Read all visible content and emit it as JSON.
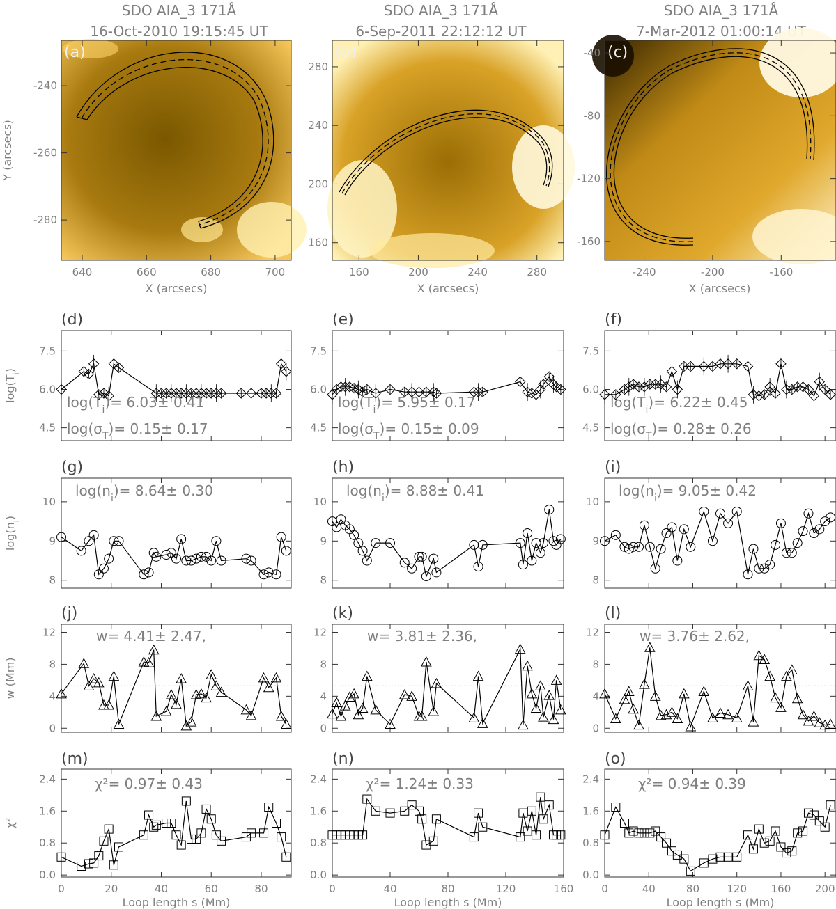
{
  "images": [
    {
      "letter": "(a)",
      "title1": "SDO AIA_3 171Å",
      "title2": "16-Oct-2010 19:15:45 UT",
      "xlabel": "X (arcsecs)",
      "ylabel": "Y (arcsecs)",
      "xticks": [
        "640",
        "660",
        "680",
        "700"
      ],
      "yticks": [
        "-240",
        "-260",
        "-280"
      ]
    },
    {
      "letter": "(b)",
      "title1": "SDO AIA_3 171Å",
      "title2": "6-Sep-2011 22:12:12 UT",
      "xlabel": "X (arcsecs)",
      "ylabel": "",
      "xticks": [
        "160",
        "200",
        "240",
        "280"
      ],
      "yticks": [
        "280",
        "240",
        "200",
        "160"
      ]
    },
    {
      "letter": "(c)",
      "title1": "SDO AIA_3 171Å",
      "title2": "7-Mar-2012 01:00:14 UT",
      "xlabel": "X (arcsecs)",
      "ylabel": "",
      "xticks": [
        "-240",
        "-200",
        "-160"
      ],
      "yticks": [
        "-40",
        "-80",
        "-120",
        "-160"
      ]
    }
  ],
  "rows": [
    {
      "key": "T",
      "ylabel": "log(T_i)",
      "letters": [
        "(d)",
        "(e)",
        "(f)"
      ],
      "annotations": [
        [
          "log(T_i)= 6.03± 0.41",
          "log(σ_T)= 0.15± 0.17"
        ],
        [
          "log(T_i)= 5.95± 0.17",
          "log(σ_T)= 0.15± 0.09"
        ],
        [
          "log(T_i)= 6.22± 0.45",
          "log(σ_T)= 0.28± 0.26"
        ]
      ]
    },
    {
      "key": "n",
      "ylabel": "log(n_i)",
      "letters": [
        "(g)",
        "(h)",
        "(i)"
      ],
      "annotations": [
        [
          "log(n_i)= 8.64± 0.30"
        ],
        [
          "log(n_i)= 8.88± 0.41"
        ],
        [
          "log(n_i)= 9.05± 0.42"
        ]
      ]
    },
    {
      "key": "w",
      "ylabel": "w (Mm)",
      "letters": [
        "(j)",
        "(k)",
        "(l)"
      ],
      "annotations": [
        [
          "w= 4.41± 2.47,"
        ],
        [
          "w= 3.81± 2.36,"
        ],
        [
          "w= 3.76± 2.62,"
        ]
      ]
    },
    {
      "key": "chi",
      "ylabel": "χ²",
      "letters": [
        "(m)",
        "(n)",
        "(o)"
      ],
      "annotations": [
        [
          "χ²= 0.97± 0.43"
        ],
        [
          "χ²= 1.24± 0.33"
        ],
        [
          "χ²= 0.94± 0.39"
        ]
      ]
    }
  ],
  "xlabel_bottom": "Loop length s (Mm)",
  "chart_data": [
    {
      "type": "line",
      "panel": "d",
      "ylabel": "log(T_i)",
      "xlim": [
        0,
        92
      ],
      "ylim": [
        4.0,
        8.3
      ],
      "yticks": [
        "7.5",
        "6.0",
        "4.5"
      ],
      "xticks": [],
      "x": [
        0,
        9,
        11,
        13,
        15,
        17,
        19,
        21,
        23,
        38,
        40,
        42,
        44,
        46,
        48,
        50,
        52,
        54,
        56,
        58,
        60,
        62,
        64,
        72,
        76,
        80,
        82,
        84,
        86,
        88,
        90
      ],
      "y": [
        6.0,
        6.7,
        6.6,
        7.0,
        5.8,
        5.85,
        5.75,
        7.0,
        6.85,
        5.85,
        5.85,
        5.85,
        5.85,
        5.85,
        5.85,
        5.85,
        5.85,
        5.85,
        5.85,
        5.85,
        5.85,
        5.85,
        5.85,
        5.85,
        5.85,
        5.85,
        5.85,
        5.85,
        5.85,
        7.0,
        6.7
      ]
    },
    {
      "type": "line",
      "panel": "e",
      "ylabel": "log(T_i)",
      "xlim": [
        0,
        160
      ],
      "ylim": [
        4.0,
        8.3
      ],
      "yticks": [
        "7.5",
        "6.0",
        "4.5"
      ],
      "xticks": [],
      "x": [
        0,
        3,
        6,
        9,
        12,
        15,
        18,
        21,
        24,
        30,
        40,
        50,
        55,
        60,
        65,
        70,
        72,
        98,
        101,
        104,
        130,
        135,
        138,
        141,
        144,
        146,
        150,
        153,
        155,
        158
      ],
      "y": [
        5.8,
        6.0,
        6.1,
        6.1,
        6.1,
        6.05,
        6.0,
        5.9,
        6.0,
        5.85,
        6.0,
        5.9,
        5.9,
        5.9,
        5.9,
        5.9,
        5.85,
        5.9,
        5.9,
        5.9,
        6.3,
        5.9,
        5.85,
        5.8,
        6.0,
        6.2,
        6.5,
        6.2,
        6.1,
        6.0
      ]
    },
    {
      "type": "line",
      "panel": "f",
      "ylabel": "log(T_i)",
      "xlim": [
        0,
        210
      ],
      "ylim": [
        4.0,
        8.3
      ],
      "yticks": [
        "7.5",
        "6.0",
        "4.5"
      ],
      "xticks": [],
      "x": [
        0,
        10,
        18,
        22,
        26,
        31,
        36,
        41,
        46,
        51,
        56,
        61,
        66,
        72,
        78,
        90,
        98,
        105,
        112,
        120,
        130,
        135,
        140,
        145,
        150,
        155,
        160,
        165,
        170,
        175,
        180,
        185,
        190,
        195,
        200,
        205
      ],
      "y": [
        5.8,
        5.8,
        6.0,
        6.1,
        6.2,
        6.1,
        6.1,
        6.2,
        6.2,
        6.2,
        6.1,
        6.7,
        6.0,
        6.9,
        6.9,
        6.9,
        6.9,
        7.0,
        7.0,
        7.0,
        6.9,
        5.8,
        5.75,
        5.8,
        6.1,
        5.85,
        7.0,
        6.0,
        6.0,
        6.1,
        6.1,
        6.0,
        5.75,
        6.3,
        6.0,
        5.8
      ]
    },
    {
      "type": "line",
      "panel": "g",
      "ylabel": "log(n_i)",
      "xlim": [
        0,
        92
      ],
      "ylim": [
        7.8,
        10.6
      ],
      "yticks": [
        "10",
        "9",
        "8"
      ],
      "xticks": [],
      "x": [
        0,
        8,
        11,
        13,
        15,
        17,
        19,
        21,
        23,
        33,
        35,
        37,
        38,
        42,
        44,
        46,
        48,
        50,
        52,
        54,
        56,
        58,
        60,
        62,
        64,
        74,
        76,
        81,
        83,
        86,
        88,
        90
      ],
      "y": [
        9.1,
        8.75,
        9.0,
        9.15,
        8.15,
        8.3,
        8.55,
        9.0,
        9.0,
        8.15,
        8.2,
        8.7,
        8.6,
        8.65,
        8.7,
        8.55,
        9.05,
        8.5,
        8.5,
        8.55,
        8.6,
        8.6,
        8.5,
        9.0,
        8.5,
        8.55,
        8.5,
        8.15,
        8.2,
        8.15,
        9.1,
        8.75
      ]
    },
    {
      "type": "line",
      "panel": "h",
      "ylabel": "log(n_i)",
      "xlim": [
        0,
        160
      ],
      "ylim": [
        7.8,
        10.6
      ],
      "yticks": [
        "10",
        "9",
        "8"
      ],
      "xticks": [],
      "x": [
        0,
        3,
        6,
        9,
        12,
        15,
        18,
        21,
        24,
        30,
        40,
        50,
        55,
        60,
        62,
        65,
        70,
        72,
        98,
        101,
        104,
        130,
        132,
        135,
        138,
        141,
        144,
        146,
        150,
        153,
        155,
        158
      ],
      "y": [
        9.5,
        9.35,
        9.55,
        9.4,
        9.3,
        9.15,
        8.95,
        8.75,
        8.5,
        8.95,
        8.95,
        8.45,
        8.3,
        8.6,
        8.6,
        8.1,
        8.55,
        8.2,
        8.9,
        8.35,
        8.9,
        8.95,
        8.4,
        9.2,
        8.5,
        8.95,
        8.7,
        8.95,
        9.8,
        9.0,
        8.9,
        9.05
      ]
    },
    {
      "type": "line",
      "panel": "i",
      "ylabel": "log(n_i)",
      "xlim": [
        0,
        210
      ],
      "ylim": [
        7.8,
        10.6
      ],
      "yticks": [
        "10",
        "9",
        "8"
      ],
      "xticks": [],
      "x": [
        0,
        10,
        18,
        22,
        26,
        31,
        36,
        41,
        46,
        51,
        56,
        61,
        66,
        72,
        78,
        90,
        98,
        105,
        112,
        120,
        130,
        135,
        140,
        145,
        150,
        155,
        160,
        165,
        170,
        175,
        180,
        185,
        190,
        195,
        200,
        205
      ],
      "y": [
        9.0,
        9.15,
        8.85,
        8.8,
        8.85,
        8.85,
        9.4,
        8.85,
        8.3,
        8.8,
        9.2,
        9.35,
        8.5,
        9.3,
        8.85,
        9.75,
        9.0,
        9.7,
        9.45,
        9.75,
        8.15,
        8.8,
        8.3,
        8.3,
        8.4,
        8.9,
        9.45,
        8.7,
        8.7,
        8.95,
        9.25,
        9.7,
        9.2,
        9.3,
        9.5,
        9.6
      ]
    },
    {
      "type": "line",
      "panel": "j",
      "ylabel": "w (Mm)",
      "xlim": [
        0,
        92
      ],
      "ylim": [
        -0.5,
        13
      ],
      "yticks": [
        "12",
        "8",
        "4",
        "0"
      ],
      "xticks": [],
      "dotted_y": 5.3,
      "x": [
        0,
        9,
        11,
        13,
        15,
        17,
        19,
        21,
        23,
        33,
        35,
        37,
        38,
        42,
        44,
        46,
        48,
        50,
        52,
        54,
        56,
        58,
        60,
        62,
        64,
        74,
        76,
        81,
        83,
        86,
        88,
        90
      ],
      "y": [
        4.3,
        8.1,
        5.3,
        6.2,
        5.7,
        2.9,
        2.9,
        6.5,
        0.5,
        8.3,
        8.2,
        9.8,
        1.5,
        2.1,
        4.2,
        3.0,
        6.2,
        0.3,
        0.8,
        4.2,
        4.3,
        3.8,
        6.7,
        5.3,
        4.5,
        2.3,
        1.6,
        6.3,
        5.1,
        6.3,
        1.5,
        0.5
      ]
    },
    {
      "type": "line",
      "panel": "k",
      "ylabel": "w (Mm)",
      "xlim": [
        0,
        160
      ],
      "ylim": [
        -0.5,
        13
      ],
      "yticks": [
        "12",
        "8",
        "4",
        "0"
      ],
      "xticks": [],
      "dotted_y": 5.3,
      "x": [
        0,
        3,
        6,
        9,
        12,
        15,
        18,
        21,
        24,
        30,
        40,
        50,
        55,
        60,
        62,
        65,
        70,
        72,
        98,
        101,
        104,
        130,
        132,
        135,
        138,
        141,
        144,
        146,
        150,
        153,
        155,
        158
      ],
      "y": [
        1.8,
        3.2,
        1.5,
        2.8,
        3.9,
        4.3,
        1.7,
        2.5,
        6.5,
        2.3,
        0.5,
        4.2,
        4.0,
        1.5,
        1.5,
        8.3,
        2.1,
        5.6,
        1.3,
        6.5,
        0.6,
        9.9,
        0.4,
        7.8,
        4.3,
        2.5,
        5.3,
        1.4,
        4.1,
        1.1,
        6.0,
        2.3
      ]
    },
    {
      "type": "line",
      "panel": "l",
      "ylabel": "w (Mm)",
      "xlim": [
        0,
        210
      ],
      "ylim": [
        -0.5,
        13
      ],
      "yticks": [
        "12",
        "8",
        "4",
        "0"
      ],
      "xticks": [],
      "dotted_y": 5.3,
      "x": [
        0,
        10,
        18,
        22,
        26,
        31,
        36,
        41,
        46,
        51,
        56,
        61,
        66,
        72,
        78,
        90,
        98,
        105,
        112,
        120,
        130,
        135,
        140,
        145,
        150,
        155,
        160,
        165,
        170,
        175,
        180,
        185,
        190,
        195,
        200,
        205
      ],
      "y": [
        4.3,
        1.2,
        3.6,
        4.6,
        2.4,
        0.4,
        5.5,
        10.1,
        4.0,
        1.6,
        1.7,
        2.0,
        1.2,
        4.3,
        0.2,
        4.6,
        1.3,
        1.9,
        1.7,
        1.3,
        5.3,
        0.8,
        9.1,
        8.6,
        6.5,
        3.8,
        2.6,
        6.5,
        7.3,
        3.7,
        1.7,
        0.9,
        1.5,
        0.7,
        0.4,
        0.5
      ]
    },
    {
      "type": "line",
      "panel": "m",
      "ylabel": "χ²",
      "xlim": [
        0,
        92
      ],
      "ylim": [
        -0.05,
        2.65
      ],
      "yticks": [
        "2.4",
        "1.6",
        "0.8",
        "0.0"
      ],
      "xticks": [
        "0",
        "20",
        "40",
        "60",
        "80"
      ],
      "x": [
        0,
        8,
        11,
        13,
        15,
        17,
        19,
        21,
        23,
        33,
        35,
        37,
        38,
        42,
        44,
        46,
        48,
        50,
        52,
        54,
        56,
        58,
        60,
        62,
        64,
        74,
        76,
        81,
        83,
        86,
        88,
        90
      ],
      "y": [
        0.45,
        0.22,
        0.28,
        0.3,
        0.48,
        0.85,
        1.15,
        0.25,
        0.7,
        1.0,
        1.5,
        1.2,
        1.25,
        1.3,
        1.3,
        1.0,
        0.75,
        1.85,
        0.9,
        0.9,
        1.05,
        1.65,
        1.4,
        1.0,
        0.85,
        0.95,
        1.05,
        1.05,
        1.7,
        1.3,
        0.95,
        0.45
      ]
    },
    {
      "type": "line",
      "panel": "n",
      "ylabel": "χ²",
      "xlim": [
        0,
        160
      ],
      "ylim": [
        -0.05,
        2.65
      ],
      "yticks": [
        "2.4",
        "1.6",
        "0.8",
        "0.0"
      ],
      "xticks": [
        "0",
        "40",
        "80",
        "120",
        "160"
      ],
      "x": [
        0,
        3,
        6,
        9,
        12,
        15,
        18,
        21,
        24,
        30,
        40,
        50,
        55,
        60,
        62,
        65,
        70,
        72,
        98,
        101,
        104,
        130,
        132,
        135,
        138,
        141,
        144,
        146,
        150,
        153,
        155,
        158
      ],
      "y": [
        1.0,
        1.0,
        1.0,
        1.0,
        1.0,
        1.0,
        1.0,
        1.0,
        1.9,
        1.6,
        1.55,
        1.6,
        1.75,
        1.6,
        1.4,
        0.75,
        0.85,
        1.4,
        0.95,
        1.55,
        1.2,
        0.95,
        1.55,
        1.1,
        1.6,
        1.0,
        1.95,
        1.4,
        1.75,
        1.0,
        1.0,
        1.0
      ]
    },
    {
      "type": "line",
      "panel": "o",
      "ylabel": "χ²",
      "xlim": [
        0,
        210
      ],
      "ylim": [
        -0.05,
        2.65
      ],
      "yticks": [
        "2.4",
        "1.6",
        "0.8",
        "0.0"
      ],
      "xticks": [
        "0",
        "40",
        "80",
        "120",
        "160",
        "200"
      ],
      "x": [
        0,
        10,
        18,
        22,
        26,
        31,
        36,
        41,
        46,
        51,
        56,
        61,
        66,
        72,
        78,
        90,
        98,
        105,
        112,
        120,
        130,
        135,
        140,
        145,
        150,
        155,
        160,
        165,
        170,
        175,
        180,
        185,
        190,
        195,
        200,
        205
      ],
      "y": [
        1.0,
        1.7,
        1.3,
        1.05,
        1.1,
        1.05,
        1.05,
        1.05,
        1.1,
        0.95,
        0.8,
        0.6,
        0.5,
        0.4,
        0.1,
        0.3,
        0.4,
        0.45,
        0.45,
        0.45,
        1.0,
        0.65,
        1.15,
        0.8,
        0.85,
        1.1,
        0.7,
        0.55,
        0.6,
        1.05,
        1.1,
        1.55,
        1.5,
        1.35,
        1.2,
        1.75
      ]
    }
  ]
}
